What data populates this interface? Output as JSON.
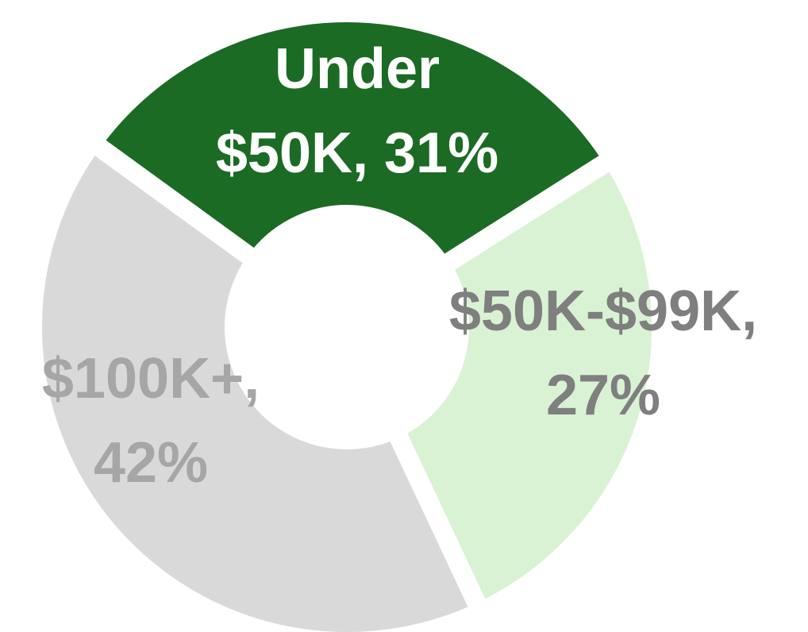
{
  "chart_data": {
    "type": "donut",
    "values": [
      31,
      27,
      42
    ],
    "value_labels": [
      "Under $50K, 31%",
      "$50K-$99K, 27%",
      "$100K+, 42%"
    ],
    "colors": [
      "#1b6b24",
      "#d9f2d3",
      "#d9d9d9"
    ],
    "label_colors": [
      "#ffffff",
      "#7f7f7f",
      "#a6a6a6"
    ]
  }
}
